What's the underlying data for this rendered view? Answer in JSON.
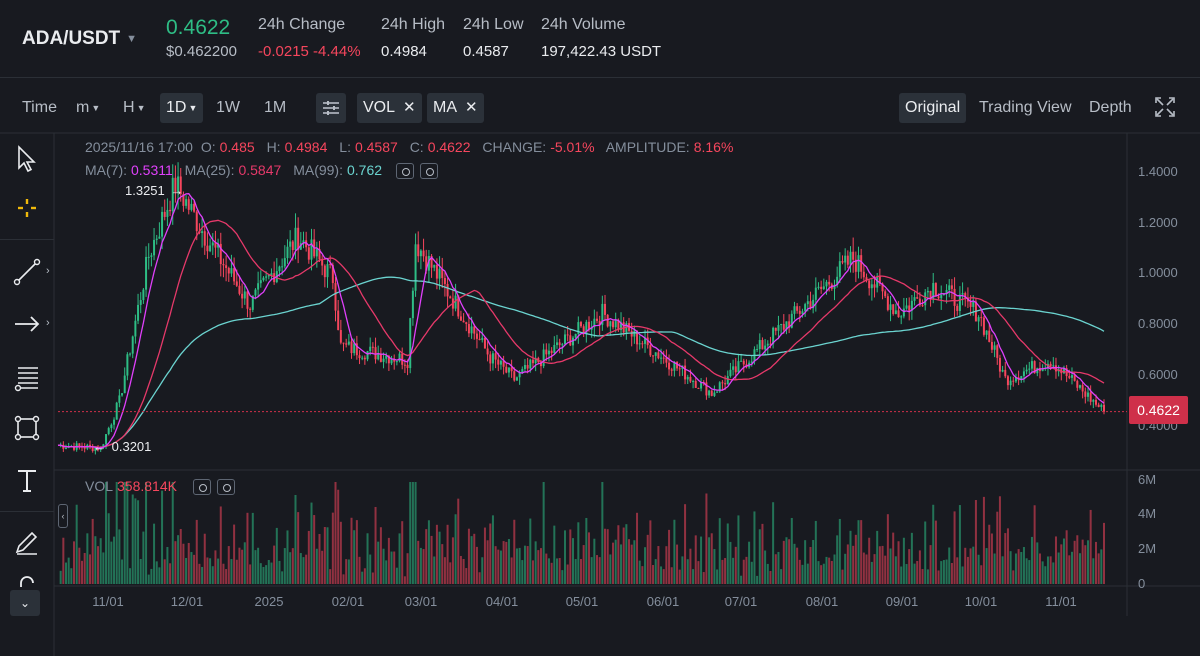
{
  "ticker": {
    "pair": "ADA/USDT",
    "last_price": "0.4622",
    "last_price_usd": "$0.462200",
    "change_label": "24h Change",
    "change_value": "-0.0215 -4.44%",
    "high_label": "24h High",
    "high_value": "0.4984",
    "low_label": "24h Low",
    "low_value": "0.4587",
    "volume_label": "24h Volume",
    "volume_value": "197,422.43 USDT"
  },
  "toolbar": {
    "time": "Time",
    "m": "m",
    "h": "H",
    "d1": "1D",
    "w1": "1W",
    "mo1": "1M",
    "vol_tag": "VOL",
    "ma_tag": "MA",
    "view_original": "Original",
    "view_trading": "Trading View",
    "view_depth": "Depth"
  },
  "legend": {
    "date": "2025/11/16 17:00",
    "o_label": "O:",
    "o_value": "0.485",
    "h_label": "H:",
    "h_value": "0.4984",
    "l_label": "L:",
    "l_value": "0.4587",
    "c_label": "C:",
    "c_value": "0.4622",
    "change_label": "CHANGE:",
    "change_value": "-5.01%",
    "amp_label": "AMPLITUDE:",
    "amp_value": "8.16%",
    "ma7_label": "MA(7):",
    "ma7_value": "0.5311",
    "ma25_label": "MA(25):",
    "ma25_value": "0.5847",
    "ma99_label": "MA(99):",
    "ma99_value": "0.762",
    "vol_label": "VOL",
    "vol_value": "358.814K"
  },
  "colors": {
    "up": "#2ebd85",
    "down": "#f6465d",
    "ma7": "#e040fb",
    "ma25": "#e6396a",
    "ma99": "#6bd4d0",
    "background": "#181a20"
  },
  "chart_data": {
    "type": "candlestick",
    "current_price": "0.4622",
    "max_label": "1.3251",
    "min_label": "0.3201",
    "y_ticks": [
      "1.4000",
      "1.2000",
      "1.0000",
      "0.8000",
      "0.6000",
      "0.4000"
    ],
    "vol_ticks": [
      "6M",
      "4M",
      "2M",
      "0"
    ],
    "x_ticks": [
      "11/01",
      "12/01",
      "2025",
      "02/01",
      "03/01",
      "04/01",
      "05/01",
      "06/01",
      "07/01",
      "08/01",
      "09/01",
      "10/01",
      "11/01"
    ],
    "ylim": [
      0.25,
      1.45
    ],
    "monthly_closes": [
      {
        "date": "2024-10-20",
        "close": 0.34
      },
      {
        "date": "2024-11-05",
        "close": 0.33
      },
      {
        "date": "2024-11-12",
        "close": 0.5
      },
      {
        "date": "2024-11-23",
        "close": 1.03
      },
      {
        "date": "2024-12-03",
        "close": 1.29
      },
      {
        "date": "2024-12-15",
        "close": 1.09
      },
      {
        "date": "2024-12-31",
        "close": 0.85
      },
      {
        "date": "2025-01-18",
        "close": 1.1
      },
      {
        "date": "2025-01-31",
        "close": 0.95
      },
      {
        "date": "2025-02-03",
        "close": 0.7
      },
      {
        "date": "2025-02-28",
        "close": 0.65
      },
      {
        "date": "2025-03-03",
        "close": 1.08
      },
      {
        "date": "2025-03-31",
        "close": 0.66
      },
      {
        "date": "2025-04-09",
        "close": 0.58
      },
      {
        "date": "2025-05-12",
        "close": 0.82
      },
      {
        "date": "2025-06-22",
        "close": 0.53
      },
      {
        "date": "2025-07-14",
        "close": 0.73
      },
      {
        "date": "2025-07-25",
        "close": 0.83
      },
      {
        "date": "2025-08-14",
        "close": 1.02
      },
      {
        "date": "2025-08-31",
        "close": 0.82
      },
      {
        "date": "2025-09-13",
        "close": 0.92
      },
      {
        "date": "2025-09-30",
        "close": 0.82
      },
      {
        "date": "2025-10-10",
        "close": 0.58
      },
      {
        "date": "2025-10-27",
        "close": 0.65
      },
      {
        "date": "2025-11-16",
        "close": 0.4622
      }
    ]
  }
}
